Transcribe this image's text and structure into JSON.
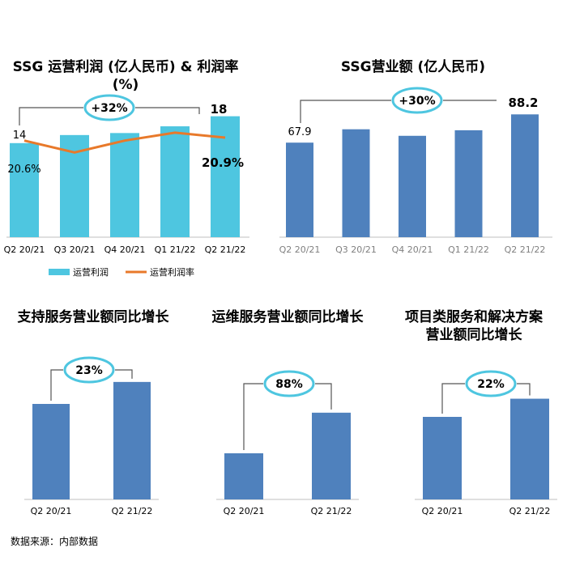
{
  "chart_data": [
    {
      "type": "bar+line",
      "title": "SSG 运营利润 (亿人民币) & 利润率 (%)",
      "categories": [
        "Q2 20/21",
        "Q3 20/21",
        "Q4 20/21",
        "Q1 21/22",
        "Q2 21/22"
      ],
      "series": [
        {
          "name": "运营利润",
          "type": "bar",
          "color": "#4ec6e0",
          "values": [
            14,
            15.2,
            15.5,
            16.5,
            18
          ]
        },
        {
          "name": "运营利润率",
          "type": "line",
          "color": "#e8792a",
          "values": [
            20.6,
            19.4,
            20.6,
            21.4,
            20.9
          ]
        }
      ],
      "value_labels": {
        "first_bar": "14",
        "last_bar": "18",
        "first_line": "20.6%",
        "last_line": "20.9%"
      },
      "growth_badge": "+32%",
      "legend_position": "bottom"
    },
    {
      "type": "bar",
      "title": "SSG营业额 (亿人民币)",
      "categories": [
        "Q2 20/21",
        "Q3 20/21",
        "Q4 20/21",
        "Q1 21/22",
        "Q2 21/22"
      ],
      "series": [
        {
          "name": "",
          "color": "#4f81bd",
          "values": [
            67.9,
            77.5,
            72.8,
            76.8,
            88.2
          ]
        }
      ],
      "value_labels": {
        "first_bar": "67.9",
        "last_bar": "88.2"
      },
      "growth_badge": "+30%"
    },
    {
      "type": "bar",
      "title": "支持服务营业额同比增长",
      "categories": [
        "Q2 20/21",
        "Q2 21/22"
      ],
      "series": [
        {
          "name": "",
          "color": "#4f81bd",
          "values": [
            1.0,
            1.23
          ]
        }
      ],
      "growth_badge": "23%"
    },
    {
      "type": "bar",
      "title": "运维服务营业额同比增长",
      "categories": [
        "Q2 20/21",
        "Q2 21/22"
      ],
      "series": [
        {
          "name": "",
          "color": "#4f81bd",
          "values": [
            1.0,
            1.88
          ]
        }
      ],
      "growth_badge": "88%"
    },
    {
      "type": "bar",
      "title": "项目类服务和解决方案 营业额同比增长",
      "title_lines": [
        "项目类服务和解决方案",
        "营业额同比增长"
      ],
      "categories": [
        "Q2 20/21",
        "Q2 21/22"
      ],
      "series": [
        {
          "name": "",
          "color": "#4f81bd",
          "values": [
            1.0,
            1.22
          ]
        }
      ],
      "growth_badge": "22%"
    }
  ],
  "source_note": "数据来源：内部数据",
  "colors": {
    "teal": "#4ec6e0",
    "blue": "#4f81bd",
    "orange": "#e8792a",
    "badge": "#4ec6e0",
    "axis": "#bfbfbf"
  }
}
